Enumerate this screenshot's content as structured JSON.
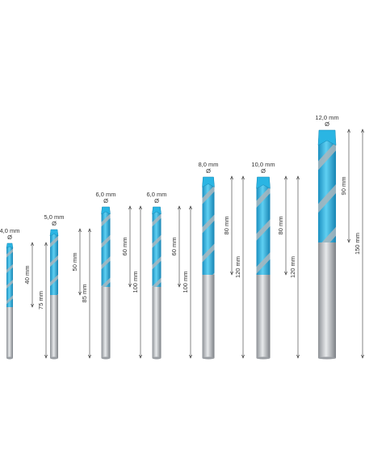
{
  "bits": [
    {
      "diameter": "4,0 mm",
      "symbol": "Ø",
      "flute_length": "40 mm",
      "total_length": "75 mm"
    },
    {
      "diameter": "5,0 mm",
      "symbol": "Ø",
      "flute_length": "50 mm",
      "total_length": "85 mm"
    },
    {
      "diameter": "6,0 mm",
      "symbol": "Ø",
      "flute_length": "60 mm",
      "total_length": "100 mm"
    },
    {
      "diameter": "6,0 mm",
      "symbol": "Ø",
      "flute_length": "60 mm",
      "total_length": "100 mm"
    },
    {
      "diameter": "8,0 mm",
      "symbol": "Ø",
      "flute_length": "80 mm",
      "total_length": "120 mm"
    },
    {
      "diameter": "10,0 mm",
      "symbol": "Ø",
      "flute_length": "80 mm",
      "total_length": "120 mm"
    },
    {
      "diameter": "12,0 mm",
      "symbol": "Ø",
      "flute_length": "90 mm",
      "total_length": "150 mm"
    }
  ]
}
